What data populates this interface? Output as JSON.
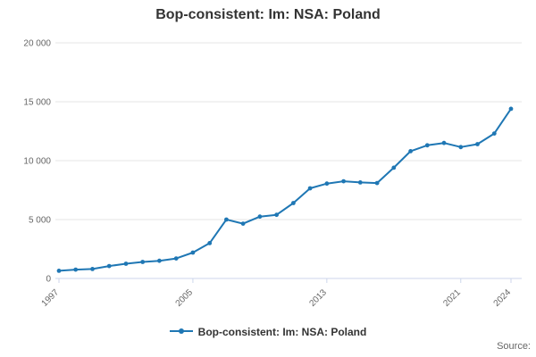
{
  "title": "Bop-consistent: Im: NSA: Poland",
  "legend": {
    "label": "Bop-consistent: Im: NSA: Poland"
  },
  "source_label": "Source:",
  "colors": {
    "series": "#1f77b4",
    "grid": "#e6e6e6",
    "axis": "#ccd6eb",
    "tick_label": "#666666",
    "title": "#333333"
  },
  "chart_data": {
    "type": "line",
    "title": "Bop-consistent: Im: NSA: Poland",
    "xlabel": "",
    "ylabel": "",
    "ylim": [
      0,
      20000
    ],
    "ytick_interval": 5000,
    "ytick_labels": [
      "0",
      "5 000",
      "10 000",
      "15 000",
      "20 000"
    ],
    "xtick_years": [
      1997,
      2005,
      2013,
      2021,
      2024
    ],
    "xtick_labels": [
      "1997",
      "2005",
      "2013",
      "2021",
      "2024"
    ],
    "grid": true,
    "legend_position": "bottom",
    "x": [
      1997,
      1998,
      1999,
      2000,
      2001,
      2002,
      2003,
      2004,
      2005,
      2006,
      2007,
      2008,
      2009,
      2010,
      2011,
      2012,
      2013,
      2014,
      2015,
      2016,
      2017,
      2018,
      2019,
      2020,
      2021,
      2022,
      2023,
      2024
    ],
    "series": [
      {
        "name": "Bop-consistent: Im: NSA: Poland",
        "values": [
          650,
          750,
          800,
          1050,
          1250,
          1400,
          1500,
          1700,
          2200,
          3000,
          5000,
          4650,
          5250,
          5400,
          6400,
          7650,
          8050,
          8250,
          8150,
          8100,
          9400,
          10800,
          11300,
          11500,
          11150,
          11400,
          12300,
          14400
        ]
      }
    ]
  }
}
